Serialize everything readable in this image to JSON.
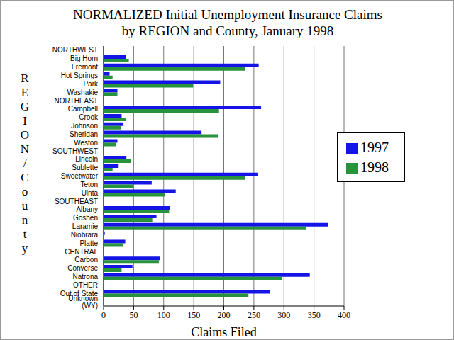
{
  "chart_data": {
    "type": "bar",
    "orientation": "horizontal",
    "title": "NORMALIZED Initial Unemployment Insurance Claims\nby REGION and County, January 1998",
    "x_label": "Claims Filed",
    "y_label": "REGION/County",
    "categories": [
      "NORTHWEST",
      "Big Horn",
      "Fremont",
      "Hot Springs",
      "Park",
      "Washakie",
      "NORTHEAST",
      "Campbell",
      "Crook",
      "Johnson",
      "Sheridan",
      "Weston",
      "SOUTHWEST",
      "Lincoln",
      "Sublette",
      "Sweetwater",
      "Teton",
      "Uinta",
      "SOUTHEAST",
      "Albany",
      "Goshen",
      "Laramie",
      "Niobrara",
      "Platte",
      "CENTRAL",
      "Carbon",
      "Converse",
      "Natrona",
      "OTHER",
      "Out of State",
      "Unknown (WY)"
    ],
    "series": [
      {
        "name": "1997",
        "color": "#1414e6",
        "values": [
          null,
          37,
          258,
          10,
          194,
          23,
          null,
          262,
          30,
          32,
          163,
          23,
          null,
          38,
          25,
          256,
          80,
          120,
          null,
          110,
          88,
          374,
          2,
          36,
          null,
          94,
          48,
          343,
          null,
          277,
          0
        ]
      },
      {
        "name": "1998",
        "color": "#27933a",
        "values": [
          null,
          42,
          236,
          15,
          149,
          23,
          null,
          192,
          37,
          29,
          191,
          21,
          null,
          46,
          15,
          235,
          50,
          102,
          null,
          109,
          81,
          337,
          1,
          33,
          null,
          92,
          30,
          297,
          null,
          241,
          1
        ]
      }
    ],
    "xlim": [
      0,
      400
    ],
    "xticks": [
      0,
      50,
      100,
      150,
      200,
      250,
      300,
      350,
      400
    ],
    "grid": true,
    "legend": "upper right"
  }
}
